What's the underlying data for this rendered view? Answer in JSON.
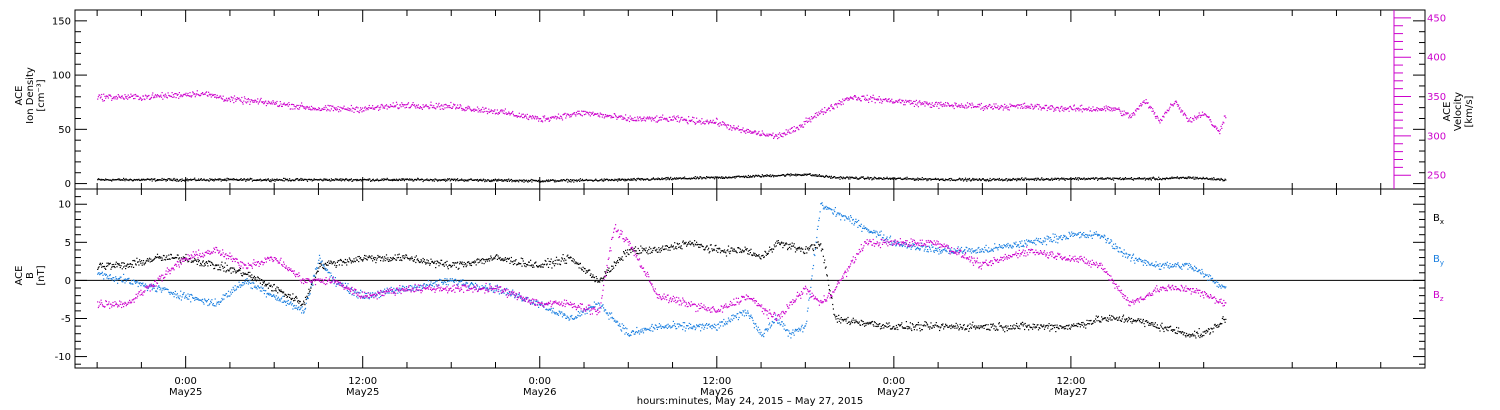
{
  "chart_data": [
    {
      "type": "scatter",
      "panel": "top",
      "ylabel_left": [
        "ACE",
        "Ion Density",
        "[cm⁻³]"
      ],
      "ylabel_right": [
        "ACE",
        "Velocity",
        "[km/s]"
      ],
      "ylim_left": [
        -5,
        160
      ],
      "yticks_left": [
        0,
        50,
        100,
        150
      ],
      "ylim_right": [
        232.5,
        460
      ],
      "yticks_right": [
        250,
        300,
        350,
        400,
        450
      ],
      "series": [
        {
          "axis": "left",
          "color": "#000000",
          "x_hours": [
            -6,
            0,
            6,
            12,
            18,
            24,
            30,
            36,
            40,
            42,
            44,
            48,
            54,
            60,
            64,
            66,
            68,
            70.5
          ],
          "values": [
            4,
            4,
            4,
            4,
            4,
            3,
            4,
            6,
            8,
            9,
            6,
            5,
            4,
            5,
            5,
            5,
            6,
            4
          ]
        },
        {
          "axis": "right",
          "color": "#cc00cc",
          "x_hours": [
            -6,
            -3,
            -1,
            1,
            3,
            6,
            9,
            12,
            15,
            18,
            21,
            24,
            27,
            30,
            33,
            36,
            37.5,
            40,
            41.5,
            42,
            45,
            48,
            51,
            54,
            57,
            60,
            62,
            63,
            64,
            65,
            66,
            67,
            68,
            69,
            70,
            70.5
          ],
          "values": [
            350,
            350,
            352,
            355,
            347,
            342,
            335,
            335,
            340,
            338,
            332,
            322,
            330,
            322,
            322,
            318,
            308,
            300,
            310,
            320,
            350,
            345,
            340,
            338,
            338,
            335,
            335,
            335,
            325,
            345,
            320,
            345,
            320,
            330,
            305,
            330
          ]
        }
      ]
    },
    {
      "type": "scatter",
      "panel": "bottom",
      "ylabel_left": [
        "ACE",
        "B",
        "[nT]"
      ],
      "ylim": [
        -11.5,
        12
      ],
      "yticks": [
        -10,
        -5,
        0,
        5,
        10
      ],
      "zero_line": true,
      "series": [
        {
          "name": "Bx",
          "color": "#000000",
          "x_hours": [
            -6,
            -4,
            -2,
            0,
            2,
            4,
            6,
            8,
            9,
            12,
            15,
            18,
            21,
            24,
            26,
            28,
            30,
            32,
            34,
            36,
            38,
            39,
            40,
            42,
            43,
            44,
            48,
            51,
            54,
            57,
            60,
            62,
            64,
            66,
            68,
            69,
            70.5
          ],
          "values": [
            2,
            2,
            3,
            3,
            2,
            1,
            -1,
            -3,
            2,
            3,
            3,
            2,
            3,
            2,
            3,
            0,
            4,
            4,
            5,
            4,
            4,
            3,
            5,
            4,
            5,
            -5,
            -6,
            -6,
            -6,
            -6,
            -6,
            -5,
            -5,
            -6,
            -7,
            -7,
            -5
          ]
        },
        {
          "name": "By",
          "color": "#1a7fe0",
          "x_hours": [
            -6,
            -4,
            -2,
            0,
            2,
            4,
            6,
            8,
            9,
            10,
            12,
            15,
            18,
            21,
            24,
            26,
            28,
            30,
            32,
            34,
            36,
            38,
            39,
            40,
            41,
            42,
            43,
            44,
            45,
            48,
            51,
            54,
            57,
            60,
            62,
            64,
            66,
            68,
            70.5
          ],
          "values": [
            1,
            0,
            -1,
            -2,
            -3,
            0,
            -2,
            -4,
            3,
            0,
            -2,
            -1,
            0,
            -1,
            -3,
            -5,
            -3,
            -7,
            -6,
            -6,
            -6,
            -4,
            -7,
            -5,
            -7,
            -6,
            10,
            9,
            8,
            5,
            4,
            4,
            5,
            6,
            6,
            3,
            2,
            2,
            -1
          ]
        },
        {
          "name": "Bz",
          "color": "#cc00cc",
          "x_hours": [
            -6,
            -4,
            -2,
            0,
            2,
            4,
            6,
            8,
            10,
            12,
            15,
            18,
            21,
            24,
            26,
            28,
            29,
            30,
            32,
            34,
            36,
            38,
            40,
            42,
            43,
            44,
            46,
            48,
            51,
            54,
            57,
            60,
            62,
            64,
            66,
            68,
            70.5
          ],
          "values": [
            -3,
            -3,
            0,
            3,
            4,
            2,
            3,
            0,
            0,
            -2,
            -1,
            -1,
            -1,
            -3,
            -3,
            -4,
            7,
            5,
            -2,
            -3,
            -4,
            -2,
            -5,
            -1,
            -3,
            -1,
            5,
            5,
            5,
            2,
            4,
            3,
            2,
            -3,
            -1,
            -1,
            -3
          ]
        }
      ]
    }
  ],
  "bottom_legend": [
    {
      "label": "B",
      "sub": "x",
      "color": "#000000"
    },
    {
      "label": "B",
      "sub": "y",
      "color": "#1a7fe0"
    },
    {
      "label": "B",
      "sub": "z",
      "color": "#cc00cc"
    }
  ],
  "x_axis": {
    "xlim_hours": [
      -7.5,
      84
    ],
    "ticks": [
      {
        "hours": 0,
        "time": "0:00",
        "date": "May25"
      },
      {
        "hours": 12,
        "time": "12:00",
        "date": "May25"
      },
      {
        "hours": 24,
        "time": "0:00",
        "date": "May26"
      },
      {
        "hours": 36,
        "time": "12:00",
        "date": "May26"
      },
      {
        "hours": 48,
        "time": "0:00",
        "date": "May27"
      },
      {
        "hours": 60,
        "time": "12:00",
        "date": "May27"
      }
    ],
    "caption": "hours:minutes, May 24, 2015 – May 27, 2015"
  }
}
